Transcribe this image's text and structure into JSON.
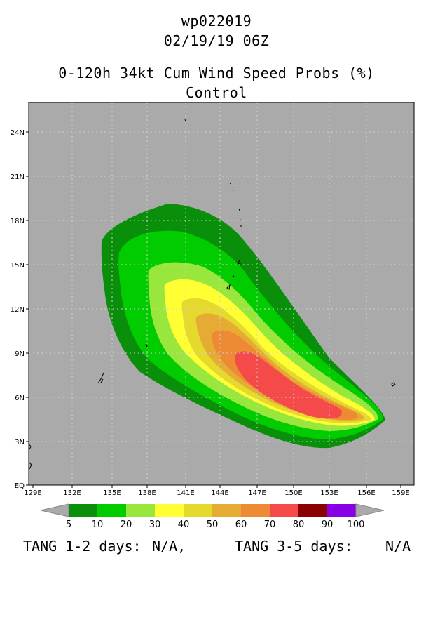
{
  "header": {
    "storm_id": "wp022019",
    "datetime": "02/19/19 06Z",
    "product": "0-120h 34kt Cum Wind Speed Probs (%)",
    "member": "Control"
  },
  "map": {
    "lat_ticks": [
      "EQ",
      "3N",
      "6N",
      "9N",
      "12N",
      "15N",
      "18N",
      "21N",
      "24N"
    ],
    "lon_ticks": [
      "129E",
      "132E",
      "135E",
      "138E",
      "141E",
      "144E",
      "147E",
      "150E",
      "153E",
      "156E",
      "159E"
    ],
    "background_color": "#aaaaaa",
    "probability_levels": [
      {
        "min": 5,
        "color": "#0a8f0a"
      },
      {
        "min": 10,
        "color": "#00cc00"
      },
      {
        "min": 20,
        "color": "#99e63c"
      },
      {
        "min": 30,
        "color": "#ffff33"
      },
      {
        "min": 40,
        "color": "#e6d92e"
      },
      {
        "min": 50,
        "color": "#e6ab33"
      },
      {
        "min": 60,
        "color": "#ee8a33"
      },
      {
        "min": 70,
        "color": "#f54a4a"
      }
    ]
  },
  "colorbar": {
    "labels": [
      "5",
      "10",
      "20",
      "30",
      "40",
      "50",
      "60",
      "70",
      "80",
      "90",
      "100"
    ],
    "colors": [
      "#0a8f0a",
      "#00cc00",
      "#99e63c",
      "#ffff33",
      "#e6d92e",
      "#e6ab33",
      "#ee8a33",
      "#f54a4a",
      "#8b0000",
      "#8a00e6"
    ]
  },
  "footer": {
    "tang_12_label": "TANG 1-2 days:",
    "tang_12_value": "N/A,",
    "tang_35_label": "TANG 3-5 days:",
    "tang_35_value": "N/A"
  }
}
